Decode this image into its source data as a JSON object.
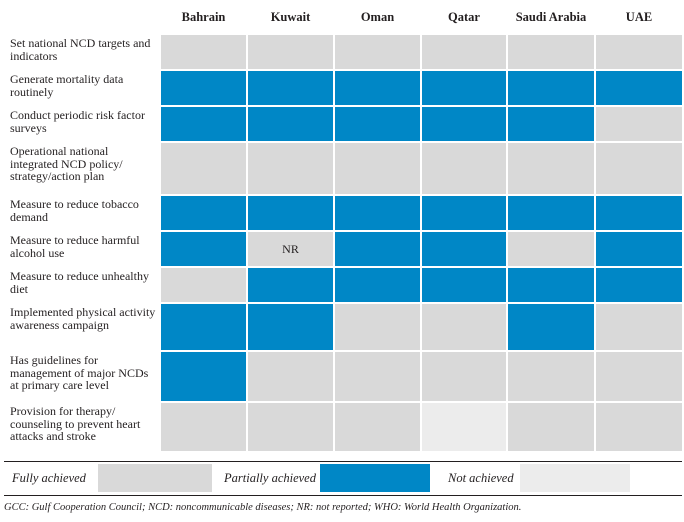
{
  "columns": [
    "Bahrain",
    "Kuwait",
    "Oman",
    "Qatar",
    "Saudi Arabia",
    "UAE"
  ],
  "rows": [
    {
      "label": "Set national NCD targets and indicators",
      "status": [
        "full",
        "full",
        "full",
        "full",
        "full",
        "full"
      ],
      "notes": [
        "",
        "",
        "",
        "",
        "",
        ""
      ]
    },
    {
      "label": "Generate mortality data routinely",
      "status": [
        "partial",
        "partial",
        "partial",
        "partial",
        "partial",
        "partial"
      ],
      "notes": [
        "",
        "",
        "",
        "",
        "",
        ""
      ]
    },
    {
      "label": "Conduct periodic risk factor surveys",
      "status": [
        "partial",
        "partial",
        "partial",
        "partial",
        "partial",
        "full"
      ],
      "notes": [
        "",
        "",
        "",
        "",
        "",
        ""
      ]
    },
    {
      "label": "Operational national integrated NCD policy/ strategy/action plan",
      "status": [
        "full",
        "full",
        "full",
        "full",
        "full",
        "full"
      ],
      "notes": [
        "",
        "",
        "",
        "",
        "",
        ""
      ]
    },
    {
      "label": "Measure to reduce tobacco demand",
      "status": [
        "partial",
        "partial",
        "partial",
        "partial",
        "partial",
        "partial"
      ],
      "notes": [
        "",
        "",
        "",
        "",
        "",
        ""
      ]
    },
    {
      "label": "Measure to reduce harmful alcohol use",
      "status": [
        "partial",
        "full",
        "partial",
        "partial",
        "full",
        "partial"
      ],
      "notes": [
        "",
        "NR",
        "",
        "",
        "",
        ""
      ]
    },
    {
      "label": "Measure to reduce unhealthy diet",
      "status": [
        "full",
        "partial",
        "partial",
        "partial",
        "partial",
        "partial"
      ],
      "notes": [
        "",
        "",
        "",
        "",
        "",
        ""
      ]
    },
    {
      "label": "Implemented physical activity awareness campaign",
      "status": [
        "partial",
        "partial",
        "full",
        "full",
        "partial",
        "full"
      ],
      "notes": [
        "",
        "",
        "",
        "",
        "",
        ""
      ]
    },
    {
      "label": "Has guidelines for management of major NCDs at primary care level",
      "status": [
        "partial",
        "full",
        "full",
        "full",
        "full",
        "full"
      ],
      "notes": [
        "",
        "",
        "",
        "",
        "",
        ""
      ]
    },
    {
      "label": "Provision for therapy/ counseling to prevent heart attacks and stroke",
      "status": [
        "full",
        "full",
        "full",
        "not",
        "full",
        "full"
      ],
      "notes": [
        "",
        "",
        "",
        "",
        "",
        ""
      ]
    }
  ],
  "legend": {
    "full": "Fully achieved",
    "partial": "Partially achieved",
    "not": "Not achieved"
  },
  "colors": {
    "full": "#d9d9d9",
    "partial": "#0087c6",
    "not": "#ececec"
  },
  "footnote": "GCC: Gulf Cooperation Council; NCD: noncommunicable diseases; NR: not reported; WHO: World Health Organization."
}
